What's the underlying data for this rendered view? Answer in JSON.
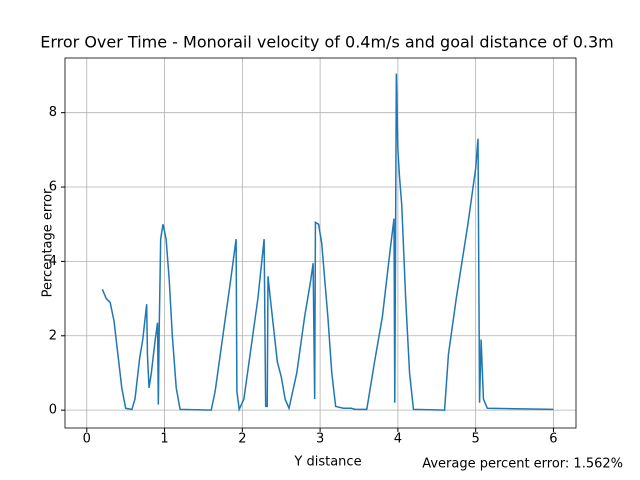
{
  "chart_data": {
    "type": "line",
    "title": "Error Over Time - Monorail velocity of 0.4m/s and goal distance of 0.3m",
    "x_label": "Y distance",
    "y_label": "Percentage error",
    "annotation": "Average percent error: 1.562%",
    "xlim": [
      -0.28,
      6.29
    ],
    "ylim": [
      -0.48,
      9.47
    ],
    "xticks": [
      0,
      1,
      2,
      3,
      4,
      5,
      6
    ],
    "yticks": [
      0,
      2,
      4,
      6,
      8
    ],
    "grid": true,
    "series": [
      {
        "color": "#1f77b4",
        "x": [
          0.2,
          0.25,
          0.3,
          0.35,
          0.4,
          0.45,
          0.5,
          0.58,
          0.62,
          0.68,
          0.72,
          0.77,
          0.78,
          0.8,
          0.83,
          0.88,
          0.91,
          0.92,
          0.93,
          0.95,
          0.98,
          1.02,
          1.06,
          1.1,
          1.15,
          1.2,
          1.6,
          1.65,
          1.75,
          1.85,
          1.92,
          1.93,
          1.96,
          2.02,
          2.1,
          2.2,
          2.28,
          2.3,
          2.32,
          2.33,
          2.36,
          2.45,
          2.5,
          2.55,
          2.6,
          2.7,
          2.8,
          2.88,
          2.91,
          2.93,
          2.94,
          2.98,
          3.02,
          3.1,
          3.15,
          3.2,
          3.3,
          3.4,
          3.45,
          3.6,
          3.7,
          3.8,
          3.9,
          3.95,
          3.96,
          3.98,
          4.0,
          4.02,
          4.05,
          4.1,
          4.15,
          4.2,
          4.6,
          4.65,
          4.75,
          4.9,
          5.0,
          5.03,
          5.05,
          5.07,
          5.1,
          5.15,
          6.0
        ],
        "values": [
          3.25,
          3.0,
          2.9,
          2.4,
          1.5,
          0.6,
          0.05,
          0.02,
          0.3,
          1.4,
          1.9,
          2.85,
          1.5,
          0.6,
          1.0,
          1.9,
          2.35,
          0.15,
          2.0,
          4.6,
          5.0,
          4.6,
          3.5,
          2.0,
          0.6,
          0.02,
          0.0,
          0.5,
          2.0,
          3.5,
          4.6,
          0.5,
          0.02,
          0.3,
          1.5,
          3.0,
          4.6,
          0.1,
          0.1,
          3.6,
          3.0,
          1.3,
          0.9,
          0.3,
          0.05,
          1.0,
          2.5,
          3.5,
          3.95,
          0.3,
          5.05,
          5.0,
          4.5,
          2.5,
          1.0,
          0.1,
          0.05,
          0.05,
          0.02,
          0.02,
          1.3,
          2.5,
          4.3,
          5.15,
          0.2,
          9.05,
          7.0,
          6.3,
          5.5,
          3.0,
          1.0,
          0.02,
          0.0,
          1.5,
          3.0,
          5.0,
          6.5,
          7.3,
          0.2,
          1.9,
          0.3,
          0.05,
          0.02
        ]
      }
    ]
  }
}
